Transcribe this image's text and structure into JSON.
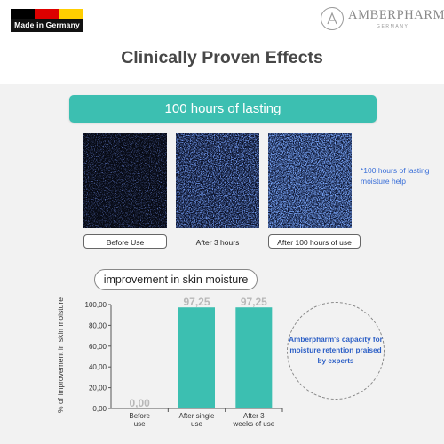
{
  "header": {
    "made_in": "Made in Germany",
    "flag_colors": [
      "#000000",
      "#dd0000",
      "#ffce00"
    ],
    "brand_name": "AMBERPHARM",
    "brand_sub": "GERMANY",
    "brand_logo": "a-in-circle-logo"
  },
  "headline": "Clinically Proven Effects",
  "lasting": {
    "banner": "100 hours of lasting",
    "samples": [
      {
        "label": "Before Use",
        "boxed": true
      },
      {
        "label": "After 3 hours",
        "boxed": false
      },
      {
        "label": "After 100 hours of use",
        "boxed": true
      }
    ],
    "note": "*100 hours of lasting moisture help"
  },
  "moisture": {
    "title": "improvement in skin moisture",
    "callout": "Amberpharm's capacity for moisture retention praised by experts"
  },
  "colors": {
    "accent": "#3cbfb1",
    "note_blue": "#3a6fd8",
    "callout_blue": "#2c5fc6"
  },
  "chart_data": {
    "type": "bar",
    "categories": [
      "Before use",
      "After single use",
      "After 3 weeks of use"
    ],
    "values": [
      0.0,
      97.25,
      97.25
    ],
    "value_labels": [
      "0,00",
      "97,25",
      "97,25"
    ],
    "ylabel": "% of improvement in skin moisture",
    "ylim": [
      0,
      100
    ],
    "yticks": [
      "0,00",
      "20,00",
      "40,00",
      "60,00",
      "80,00",
      "100,00"
    ],
    "bar_color": "#3cbfb1",
    "grid": false
  }
}
